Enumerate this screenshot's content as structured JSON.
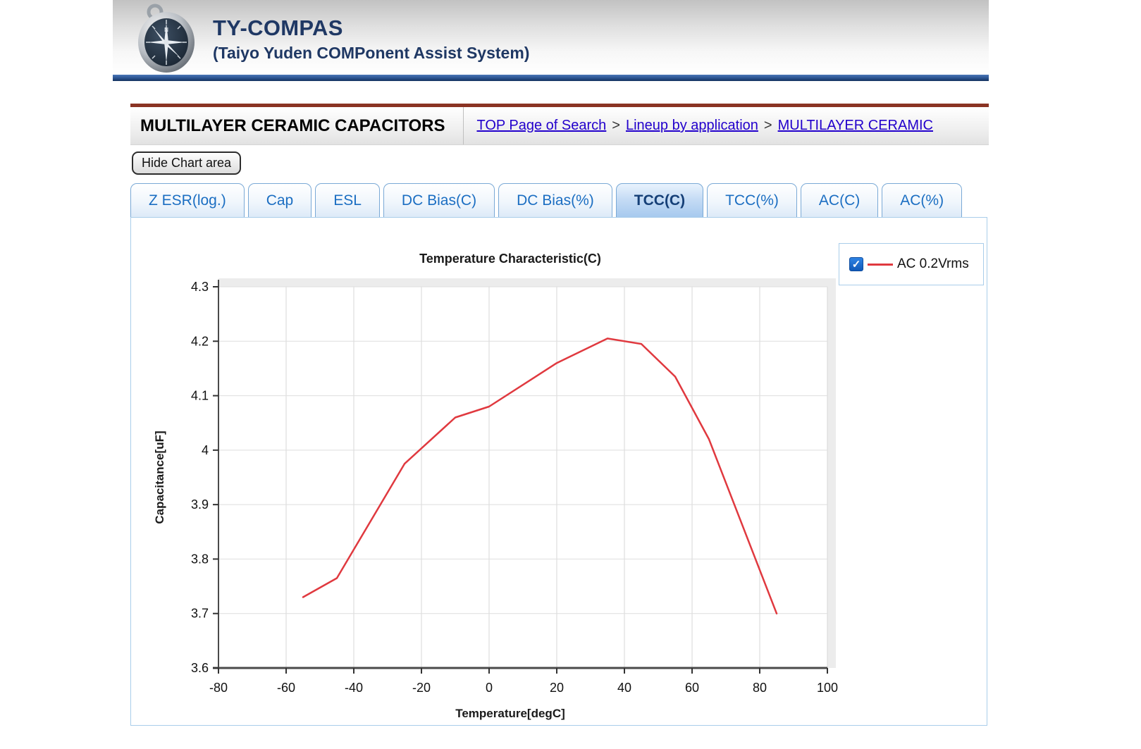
{
  "header": {
    "title": "TY-COMPAS",
    "subtitle": "(Taiyo Yuden COMPonent Assist System)",
    "logo_icon": "compass-icon"
  },
  "breadcrumb_bar": {
    "section_title": "MULTILAYER CERAMIC CAPACITORS",
    "separator": ">",
    "links": [
      "TOP Page of Search",
      "Lineup by application",
      "MULTILAYER CERAMIC"
    ]
  },
  "toolbar": {
    "hide_chart_label": "Hide Chart area"
  },
  "tabs": [
    {
      "label": "Z ESR(log.)",
      "active": false
    },
    {
      "label": "Cap",
      "active": false
    },
    {
      "label": "ESL",
      "active": false
    },
    {
      "label": "DC Bias(C)",
      "active": false
    },
    {
      "label": "DC Bias(%)",
      "active": false
    },
    {
      "label": "TCC(C)",
      "active": true
    },
    {
      "label": "TCC(%)",
      "active": false
    },
    {
      "label": "AC(C)",
      "active": false
    },
    {
      "label": "AC(%)",
      "active": false
    }
  ],
  "legend": {
    "checked": true,
    "checkbox_glyph": "✓",
    "label": "AC 0.2Vrms",
    "line_color": "#e0393f"
  },
  "colors": {
    "brand_navy": "#1f3864",
    "link_blue": "#2200cc",
    "tab_blue": "#1b6ec2",
    "rule_red": "#8a3323",
    "panel_border_blue": "#a9cdea",
    "series_red": "#e0393f",
    "grid_gray": "#d7d7d7",
    "axis_gray": "#4a4a4a"
  },
  "chart_data": {
    "type": "line",
    "title": "Temperature Characteristic(C)",
    "xlabel": "Temperature[degC]",
    "ylabel": "Capacitance[uF]",
    "xlim": [
      -80,
      100
    ],
    "ylim": [
      3.6,
      4.3
    ],
    "x_ticks": [
      -80,
      -60,
      -40,
      -20,
      0,
      20,
      40,
      60,
      80,
      100
    ],
    "x_tick_labels": [
      "-80",
      "-60",
      "-40",
      "-20",
      "0",
      "20",
      "40",
      "60",
      "80",
      "100"
    ],
    "y_ticks": [
      3.6,
      3.7,
      3.8,
      3.9,
      4.0,
      4.1,
      4.2,
      4.3
    ],
    "y_tick_labels": [
      "3.6",
      "3.7",
      "3.8",
      "3.9",
      "4",
      "4.1",
      "4.2",
      "4.3"
    ],
    "grid": true,
    "legend_position": "top-right",
    "series": [
      {
        "name": "AC 0.2Vrms",
        "color": "#e0393f",
        "x": [
          -55,
          -45,
          -25,
          -10,
          0,
          20,
          35,
          45,
          55,
          65,
          75,
          85
        ],
        "y": [
          3.73,
          3.765,
          3.975,
          4.06,
          4.08,
          4.16,
          4.205,
          4.195,
          4.135,
          4.02,
          3.86,
          3.7
        ]
      }
    ]
  }
}
